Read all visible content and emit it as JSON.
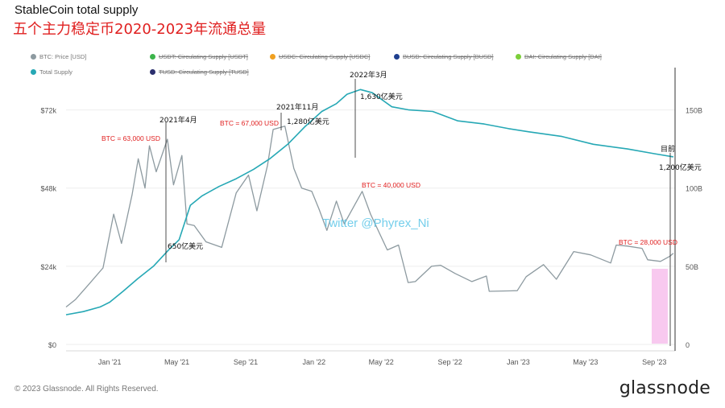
{
  "title": "StableCoin total supply",
  "subtitle": "五个主力稳定币2020-2023年流通总量",
  "legend": [
    {
      "label": "BTC: Price [USD]",
      "color": "#8d9aa0",
      "struck": false
    },
    {
      "label": "USDT: Circulating Supply [USDT]",
      "color": "#3cb44b",
      "struck": true
    },
    {
      "label": "USDC: Circulating Supply [USDC]",
      "color": "#f0a020",
      "struck": true
    },
    {
      "label": "BUSD: Circulating Supply [BUSD]",
      "color": "#1f3f8f",
      "struck": true
    },
    {
      "label": "DAI: Circulating Supply [DAI]",
      "color": "#7ccf3a",
      "struck": true
    },
    {
      "label": "Total Supply",
      "color": "#26a8b5",
      "struck": false
    },
    {
      "label": "TUSD: Circulating Supply [TUSD]",
      "color": "#2b2f6e",
      "struck": true
    }
  ],
  "chart_data": {
    "type": "line",
    "x_ticks": [
      "Jan '21",
      "May '21",
      "Sep '21",
      "Jan '22",
      "May '22",
      "Sep '22",
      "Jan '23",
      "May '23",
      "Sep '23"
    ],
    "y_left_ticks": [
      "$0",
      "$24k",
      "$48k",
      "$72k"
    ],
    "y_right_ticks": [
      "0",
      "50B",
      "100B",
      "150B"
    ],
    "y_left_range": [
      0,
      84000
    ],
    "y_right_range": [
      0,
      175
    ],
    "grid": true,
    "series": [
      {
        "name": "BTC: Price [USD]",
        "axis": "left",
        "color": "#8d9aa0",
        "points": [
          [
            "2020-10-15",
            11500
          ],
          [
            "2020-11-01",
            13800
          ],
          [
            "2020-11-25",
            18500
          ],
          [
            "2020-12-20",
            23500
          ],
          [
            "2021-01-08",
            40000
          ],
          [
            "2021-01-22",
            31000
          ],
          [
            "2021-02-10",
            46000
          ],
          [
            "2021-02-21",
            57000
          ],
          [
            "2021-03-05",
            48000
          ],
          [
            "2021-03-13",
            61000
          ],
          [
            "2021-03-25",
            53000
          ],
          [
            "2021-04-14",
            63000
          ],
          [
            "2021-04-25",
            49000
          ],
          [
            "2021-05-10",
            58000
          ],
          [
            "2021-05-19",
            37000
          ],
          [
            "2021-06-01",
            36500
          ],
          [
            "2021-06-22",
            31500
          ],
          [
            "2021-07-20",
            29800
          ],
          [
            "2021-08-15",
            46500
          ],
          [
            "2021-09-06",
            52000
          ],
          [
            "2021-09-21",
            41000
          ],
          [
            "2021-10-10",
            55000
          ],
          [
            "2021-10-20",
            66000
          ],
          [
            "2021-11-10",
            67000
          ],
          [
            "2021-11-26",
            54000
          ],
          [
            "2021-12-10",
            48000
          ],
          [
            "2021-12-28",
            47000
          ],
          [
            "2022-01-10",
            41500
          ],
          [
            "2022-01-24",
            35000
          ],
          [
            "2022-02-10",
            44000
          ],
          [
            "2022-02-24",
            37000
          ],
          [
            "2022-03-28",
            47000
          ],
          [
            "2022-04-12",
            40000
          ],
          [
            "2022-05-12",
            29000
          ],
          [
            "2022-06-01",
            30500
          ],
          [
            "2022-06-18",
            19000
          ],
          [
            "2022-07-01",
            19300
          ],
          [
            "2022-07-30",
            24000
          ],
          [
            "2022-08-15",
            24300
          ],
          [
            "2022-09-10",
            21800
          ],
          [
            "2022-10-10",
            19300
          ],
          [
            "2022-11-05",
            21000
          ],
          [
            "2022-11-10",
            16300
          ],
          [
            "2022-12-30",
            16500
          ],
          [
            "2023-01-15",
            20800
          ],
          [
            "2023-02-15",
            24500
          ],
          [
            "2023-03-10",
            20000
          ],
          [
            "2023-04-10",
            28500
          ],
          [
            "2023-05-10",
            27500
          ],
          [
            "2023-06-15",
            25000
          ],
          [
            "2023-06-25",
            30500
          ],
          [
            "2023-07-15",
            30200
          ],
          [
            "2023-08-10",
            29500
          ],
          [
            "2023-08-20",
            26000
          ],
          [
            "2023-09-12",
            25500
          ],
          [
            "2023-09-28",
            27000
          ],
          [
            "2023-10-05",
            28000
          ]
        ]
      },
      {
        "name": "Total Supply",
        "axis": "right",
        "color": "#26a8b5",
        "points": [
          [
            "2020-10-15",
            19
          ],
          [
            "2020-11-15",
            21
          ],
          [
            "2020-12-15",
            24
          ],
          [
            "2021-01-01",
            27
          ],
          [
            "2021-01-25",
            34
          ],
          [
            "2021-02-20",
            42
          ],
          [
            "2021-03-20",
            50
          ],
          [
            "2021-04-15",
            60
          ],
          [
            "2021-05-05",
            67
          ],
          [
            "2021-05-25",
            89
          ],
          [
            "2021-06-15",
            95
          ],
          [
            "2021-07-15",
            101
          ],
          [
            "2021-08-15",
            106
          ],
          [
            "2021-09-15",
            112
          ],
          [
            "2021-10-15",
            119
          ],
          [
            "2021-11-15",
            128
          ],
          [
            "2021-12-15",
            139
          ],
          [
            "2022-01-15",
            149
          ],
          [
            "2022-02-10",
            154
          ],
          [
            "2022-03-01",
            160
          ],
          [
            "2022-03-25",
            163
          ],
          [
            "2022-04-15",
            161
          ],
          [
            "2022-05-20",
            152
          ],
          [
            "2022-06-20",
            150
          ],
          [
            "2022-08-01",
            149
          ],
          [
            "2022-09-15",
            143
          ],
          [
            "2022-11-01",
            141
          ],
          [
            "2022-12-15",
            138
          ],
          [
            "2023-01-20",
            136
          ],
          [
            "2023-03-20",
            133
          ],
          [
            "2023-05-15",
            128
          ],
          [
            "2023-07-15",
            125
          ],
          [
            "2023-09-01",
            122
          ],
          [
            "2023-10-05",
            120
          ]
        ]
      }
    ],
    "annotations": [
      {
        "text": "BTC = 63,000 USD",
        "color": "#e02020"
      },
      {
        "text": "BTC = 67,000 USD",
        "color": "#e02020"
      },
      {
        "text": "BTC = 40,000 USD",
        "color": "#e02020"
      },
      {
        "text": "BTC = 28,000 USD",
        "color": "#e02020"
      },
      {
        "text": "2021年4月",
        "color": "#111"
      },
      {
        "text": "650亿美元",
        "color": "#111"
      },
      {
        "text": "2021年11月",
        "color": "#111"
      },
      {
        "text": "1,280亿美元",
        "color": "#111"
      },
      {
        "text": "2022年3月",
        "color": "#111"
      },
      {
        "text": "1,630亿美元",
        "color": "#111"
      },
      {
        "text": "目前",
        "color": "#111"
      },
      {
        "text": "1,200亿美元",
        "color": "#111"
      }
    ],
    "watermark": "Twitter @Phyrex_Ni",
    "highlight_color": "#f8c6ee"
  },
  "footer": "© 2023 Glassnode. All Rights Reserved.",
  "brand": "glassnode"
}
